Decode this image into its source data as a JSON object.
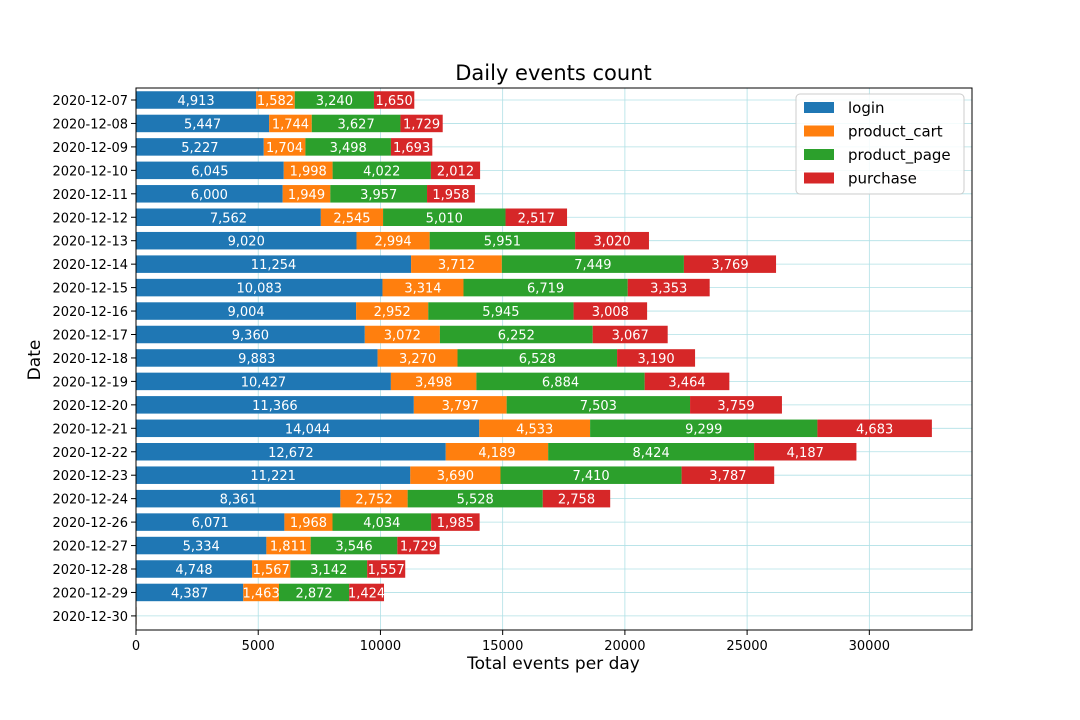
{
  "chart_data": {
    "type": "bar",
    "orientation": "horizontal",
    "stacked": true,
    "title": "Daily events count",
    "xlabel": "Total events per day",
    "ylabel": "Date",
    "xlim": [
      0,
      34200
    ],
    "xticks": [
      0,
      5000,
      10000,
      15000,
      20000,
      25000,
      30000
    ],
    "grid": true,
    "legend_position": "top-right",
    "categories": [
      "2020-12-07",
      "2020-12-08",
      "2020-12-09",
      "2020-12-10",
      "2020-12-11",
      "2020-12-12",
      "2020-12-13",
      "2020-12-14",
      "2020-12-15",
      "2020-12-16",
      "2020-12-17",
      "2020-12-18",
      "2020-12-19",
      "2020-12-20",
      "2020-12-21",
      "2020-12-22",
      "2020-12-23",
      "2020-12-24",
      "2020-12-26",
      "2020-12-27",
      "2020-12-28",
      "2020-12-29",
      "2020-12-30"
    ],
    "series": [
      {
        "name": "login",
        "color": "#1f77b4",
        "values": [
          4913,
          5447,
          5227,
          6045,
          6000,
          7562,
          9020,
          11254,
          10083,
          9004,
          9360,
          9883,
          10427,
          11366,
          14044,
          12672,
          11221,
          8361,
          6071,
          5334,
          4748,
          4387,
          12
        ]
      },
      {
        "name": "product_cart",
        "color": "#ff7f0e",
        "values": [
          1582,
          1744,
          1704,
          1998,
          1949,
          2545,
          2994,
          3712,
          3314,
          2952,
          3072,
          3270,
          3498,
          3797,
          4533,
          4189,
          3690,
          2752,
          1968,
          1811,
          1567,
          1463,
          3
        ]
      },
      {
        "name": "product_page",
        "color": "#2ca02c",
        "values": [
          3240,
          3627,
          3498,
          4022,
          3957,
          5010,
          5951,
          7449,
          6719,
          5945,
          6252,
          6528,
          6884,
          7503,
          9299,
          8424,
          7410,
          5528,
          4034,
          3546,
          3142,
          2872,
          8
        ]
      },
      {
        "name": "purchase",
        "color": "#d62728",
        "values": [
          1650,
          1729,
          1693,
          2012,
          1958,
          2517,
          3020,
          3769,
          3353,
          3008,
          3067,
          3190,
          3464,
          3759,
          4683,
          4187,
          3787,
          2758,
          1985,
          1729,
          1557,
          1424,
          3
        ]
      }
    ],
    "labeled_rows_exclude": [
      "2020-12-30"
    ]
  }
}
